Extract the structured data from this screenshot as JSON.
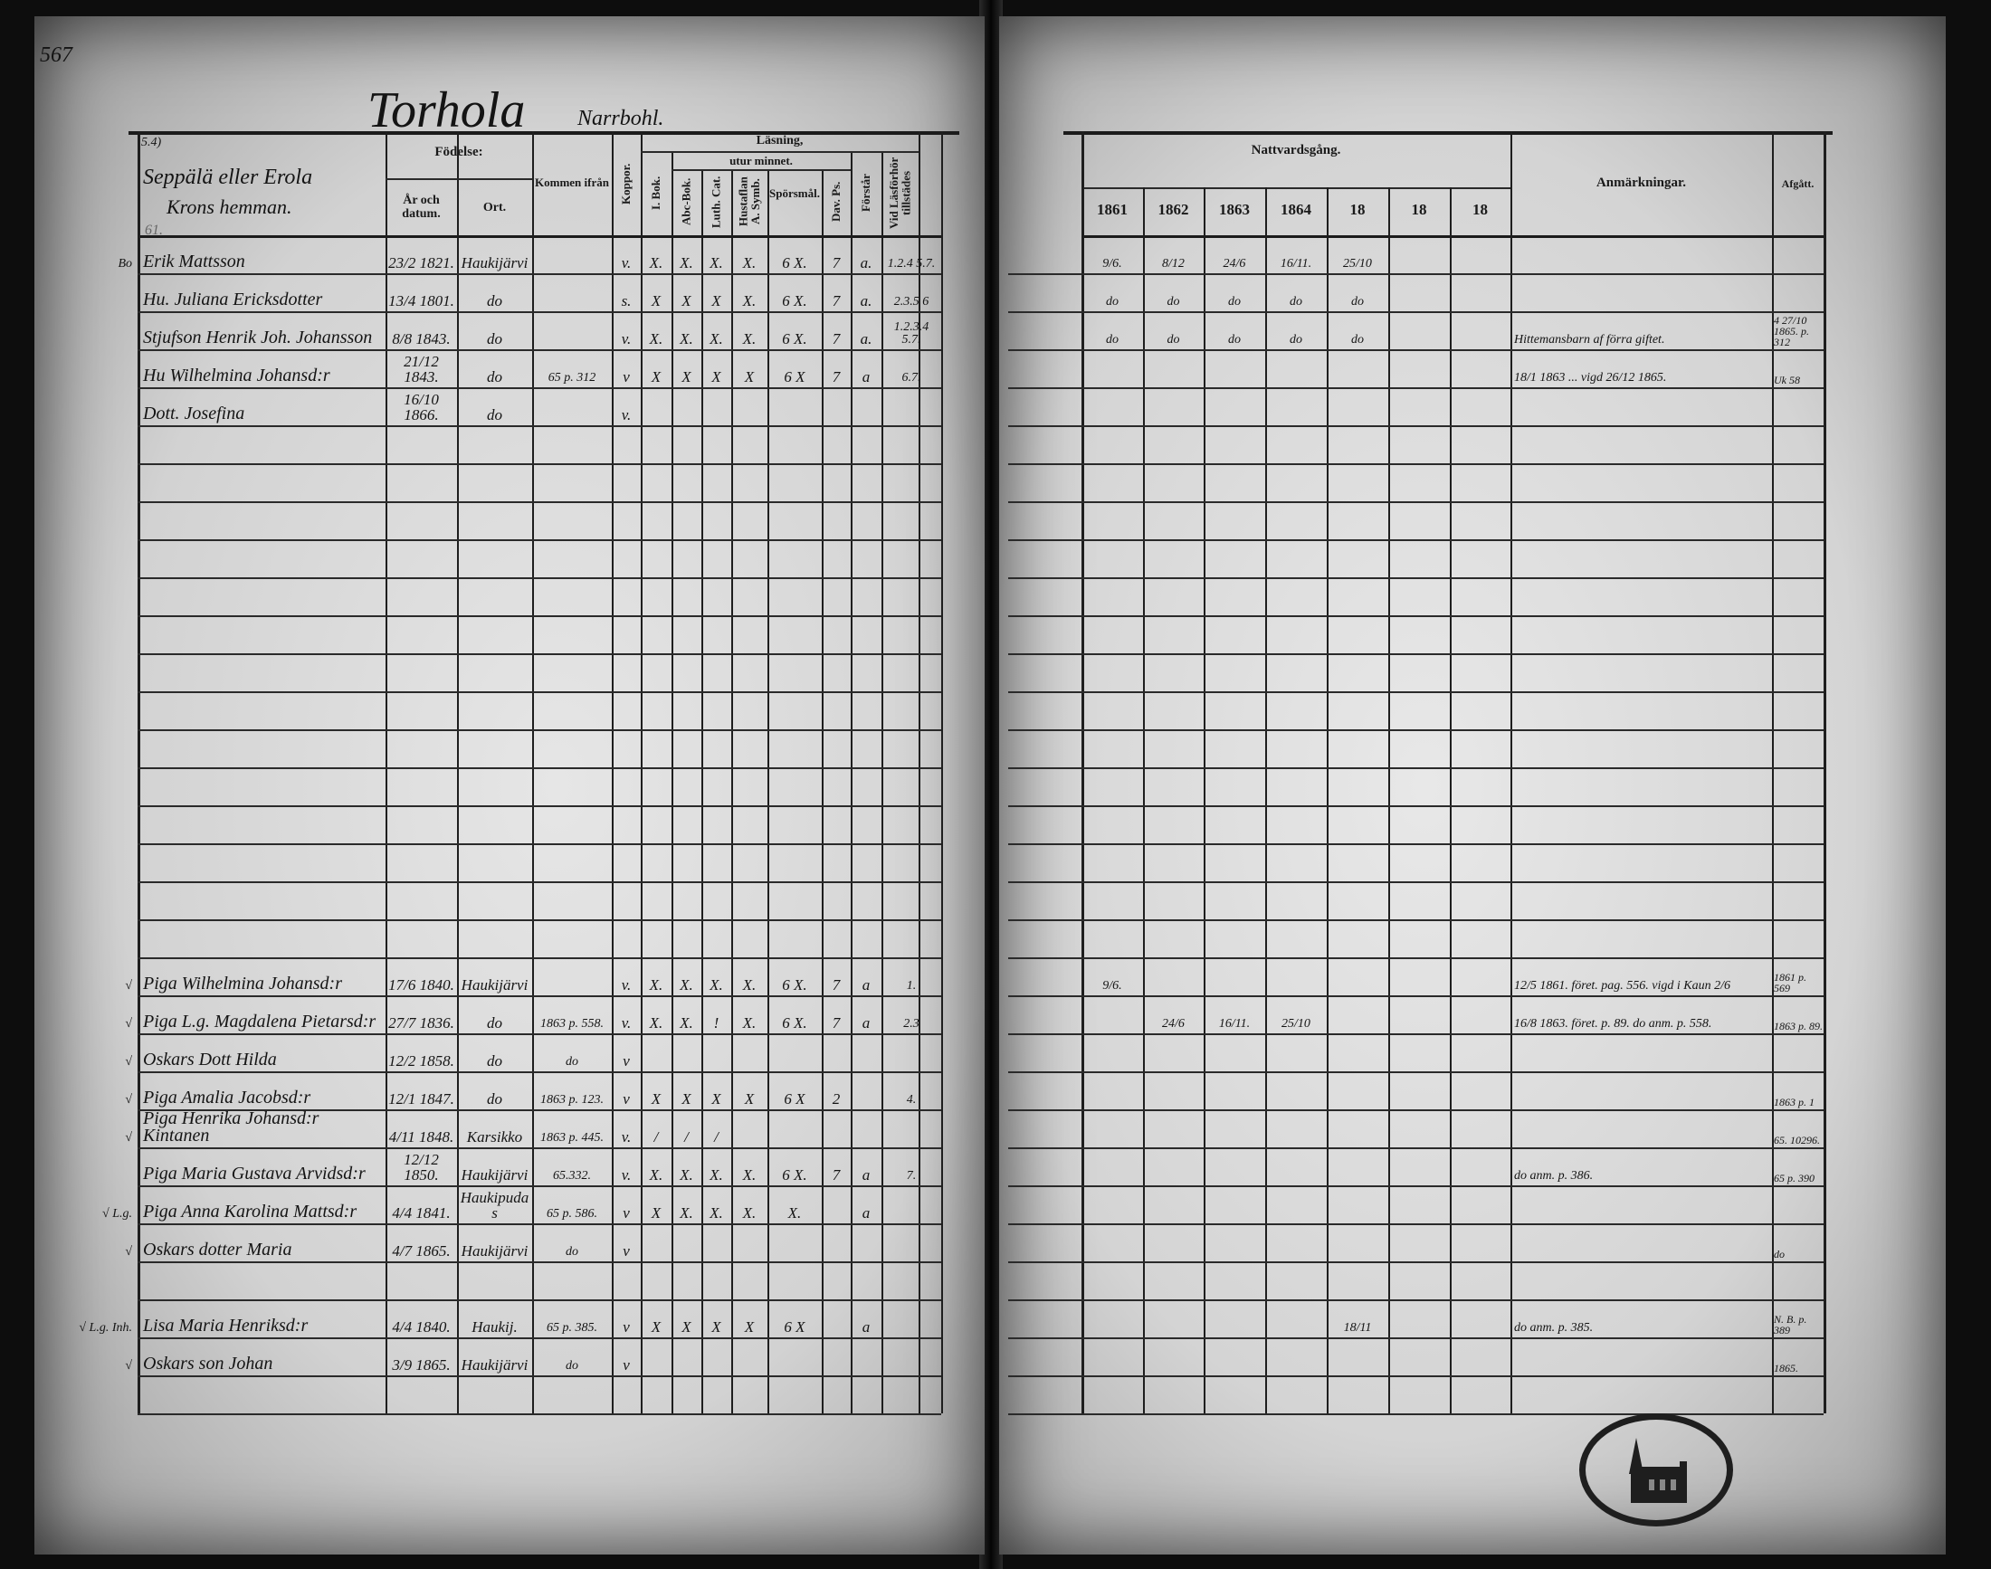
{
  "left": {
    "page_number": "567",
    "title": "Torhola",
    "title_sub": "Narrbohl.",
    "section": {
      "label_top": "5.4)",
      "name": "Seppälä eller Erola",
      "sub": "Krons hemman.",
      "note": "61."
    },
    "headers": {
      "fodelse": "Födelse:",
      "year": "År och datum.",
      "ort": "Ort.",
      "from": "Kommen ifrån",
      "koppor": "Koppor.",
      "lasning": "Läsning,",
      "utur": "utur minnet.",
      "ibok": "I. Bok.",
      "abc": "Abc-Bok.",
      "luth": "Luth. Cat.",
      "hust": "Hustaflan A. Symb.",
      "spors": "Spörsmål.",
      "dav": "Dav. Ps.",
      "forstar": "Förstår",
      "forhor": "Vid Läsförhör tillstädes"
    },
    "rows": [
      {
        "margin": "Bo",
        "name": "Erik Mattsson",
        "year": "23/2 1821.",
        "ort": "Haukijärvi",
        "from": "",
        "koppor": "v.",
        "ibok": "X.",
        "abc": "X.",
        "luth": "X.",
        "hust": "X.",
        "spors": "6 X.",
        "dav": "7",
        "forstar": "a.",
        "forhor": "1.2.4 5.7."
      },
      {
        "name": "Hu. Juliana Ericksdotter",
        "year": "13/4 1801.",
        "ort": "do",
        "from": "",
        "koppor": "s.",
        "ibok": "X",
        "abc": "X",
        "luth": "X",
        "hust": "X.",
        "spors": "6 X.",
        "dav": "7",
        "forstar": "a.",
        "forhor": "2.3.5 6"
      },
      {
        "name": "Stjufson Henrik Joh. Johansson",
        "year": "8/8 1843.",
        "ort": "do",
        "from": "",
        "koppor": "v.",
        "ibok": "X.",
        "abc": "X.",
        "luth": "X.",
        "hust": "X.",
        "spors": "6 X.",
        "dav": "7",
        "forstar": "a.",
        "forhor": "1.2.3.4 5.7."
      },
      {
        "name": "Hu Wilhelmina Johansd:r",
        "year": "21/12 1843.",
        "ort": "do",
        "from": "65 p. 312",
        "koppor": "v",
        "ibok": "X",
        "abc": "X",
        "luth": "X",
        "hust": "X",
        "spors": "6 X",
        "dav": "7",
        "forstar": "a",
        "forhor": "6.7."
      },
      {
        "name": "Dott. Josefina",
        "year": "16/10 1866.",
        "ort": "do",
        "from": "",
        "koppor": "v."
      },
      {},
      {},
      {},
      {},
      {},
      {},
      {},
      {},
      {},
      {},
      {},
      {},
      {},
      {},
      {
        "margin": "√",
        "name": "Piga Wilhelmina Johansd:r",
        "year": "17/6 1840.",
        "ort": "Haukijärvi",
        "from": "",
        "koppor": "v.",
        "ibok": "X.",
        "abc": "X.",
        "luth": "X.",
        "hust": "X.",
        "spors": "6 X.",
        "dav": "7",
        "forstar": "a",
        "forhor": "1."
      },
      {
        "margin": "√",
        "name": "Piga L.g. Magdalena Pietarsd:r",
        "year": "27/7 1836.",
        "ort": "do",
        "from": "1863 p. 558.",
        "koppor": "v.",
        "ibok": "X.",
        "abc": "X.",
        "luth": "!",
        "hust": "X.",
        "spors": "6 X.",
        "dav": "7",
        "forstar": "a",
        "forhor": "2.3"
      },
      {
        "margin": "√",
        "name": "Oskars Dott Hilda",
        "year": "12/2 1858.",
        "ort": "do",
        "from": "do",
        "koppor": "v"
      },
      {
        "margin": "√",
        "name": "Piga Amalia Jacobsd:r",
        "year": "12/1 1847.",
        "ort": "do",
        "from": "1863 p. 123.",
        "koppor": "v",
        "ibok": "X",
        "abc": "X",
        "luth": "X",
        "hust": "X",
        "spors": "6 X",
        "dav": "2",
        "forstar": "",
        "forhor": "4."
      },
      {
        "margin": "√",
        "name": "Piga Henrika Johansd:r Kintanen",
        "year": "4/11 1848.",
        "ort": "Karsikko",
        "from": "1863 p. 445.",
        "koppor": "v.",
        "ibok": "/",
        "abc": "/",
        "luth": "/"
      },
      {
        "name": "Piga Maria Gustava Arvidsd:r",
        "year": "12/12 1850.",
        "ort": "Haukijärvi",
        "from": "65.332.",
        "koppor": "v.",
        "ibok": "X.",
        "abc": "X.",
        "luth": "X.",
        "hust": "X.",
        "spors": "6 X.",
        "dav": "7",
        "forstar": "a",
        "forhor": "7."
      },
      {
        "margin": "√ L.g.",
        "name": "Piga Anna Karolina Mattsd:r",
        "year": "4/4 1841.",
        "ort": "Haukipudas",
        "from": "65 p. 586.",
        "koppor": "v",
        "ibok": "X",
        "abc": "X.",
        "luth": "X.",
        "hust": "X.",
        "spors": "X.",
        "forstar": "a"
      },
      {
        "margin": "√",
        "name": "Oskars dotter Maria",
        "year": "4/7 1865.",
        "ort": "Haukijärvi",
        "from": "do",
        "koppor": "v"
      },
      {},
      {
        "margin": "√ L.g. Inh.",
        "name": "Lisa Maria Henriksd:r",
        "year": "4/4 1840.",
        "ort": "Haukij.",
        "from": "65 p. 385.",
        "koppor": "v",
        "ibok": "X",
        "abc": "X",
        "luth": "X",
        "hust": "X",
        "spors": "6 X",
        "forstar": "a"
      },
      {
        "margin": "√",
        "name": "Oskars son Johan",
        "year": "3/9 1865.",
        "ort": "Haukijärvi",
        "from": "do",
        "koppor": "v"
      },
      {}
    ]
  },
  "right": {
    "headers": {
      "nattvard": "Nattvardsgång.",
      "years": [
        "1861",
        "1862",
        "1863",
        "1864",
        "18",
        "18",
        "18"
      ],
      "anm": "Anmärkningar.",
      "afgatt": "Afgått."
    },
    "rows": [
      {
        "c": [
          "9/6.",
          "8/12",
          "24/6",
          "16/11.",
          "25/10",
          "",
          ""
        ]
      },
      {
        "c": [
          "do",
          "do",
          "do",
          "do",
          "do",
          "",
          ""
        ]
      },
      {
        "c": [
          "do",
          "do",
          "do",
          "do",
          "do",
          "",
          ""
        ],
        "anm": "Hittemansbarn af förra giftet.",
        "afgatt": "4 27/10 1865. p. 312"
      },
      {
        "anm": "18/1 1863 ... vigd 26/12 1865.",
        "afgatt": "Uk 58"
      },
      {},
      {},
      {},
      {},
      {},
      {},
      {},
      {},
      {},
      {},
      {},
      {},
      {},
      {},
      {},
      {
        "c": [
          "9/6.",
          "",
          "",
          "",
          "",
          "",
          ""
        ],
        "anm": "12/5 1861. föret. pag. 556. vigd i Kaun 2/6",
        "afgatt": "1861 p. 569"
      },
      {
        "c": [
          "",
          "24/6",
          "16/11.",
          "25/10",
          "",
          "",
          ""
        ],
        "anm": "16/8 1863. föret. p. 89.  do anm. p. 558.",
        "afgatt": "1863 p. 89."
      },
      {},
      {
        "afgatt": "1863 p. 1"
      },
      {
        "afgatt": "65. 10296."
      },
      {
        "anm": "do anm. p. 386.",
        "afgatt": "65 p. 390"
      },
      {},
      {
        "afgatt": "do"
      },
      {},
      {
        "c": [
          "",
          "",
          "",
          "",
          "18/11",
          "",
          ""
        ],
        "anm": "do anm. p. 385.",
        "afgatt": "N. B. p. 389"
      },
      {
        "afgatt": "1865."
      },
      {}
    ]
  },
  "stamp": {
    "kind": "archive-seal"
  },
  "colors": {
    "paper": "#d8d8d8",
    "ink": "#141414",
    "background": "#0d0d0d"
  }
}
